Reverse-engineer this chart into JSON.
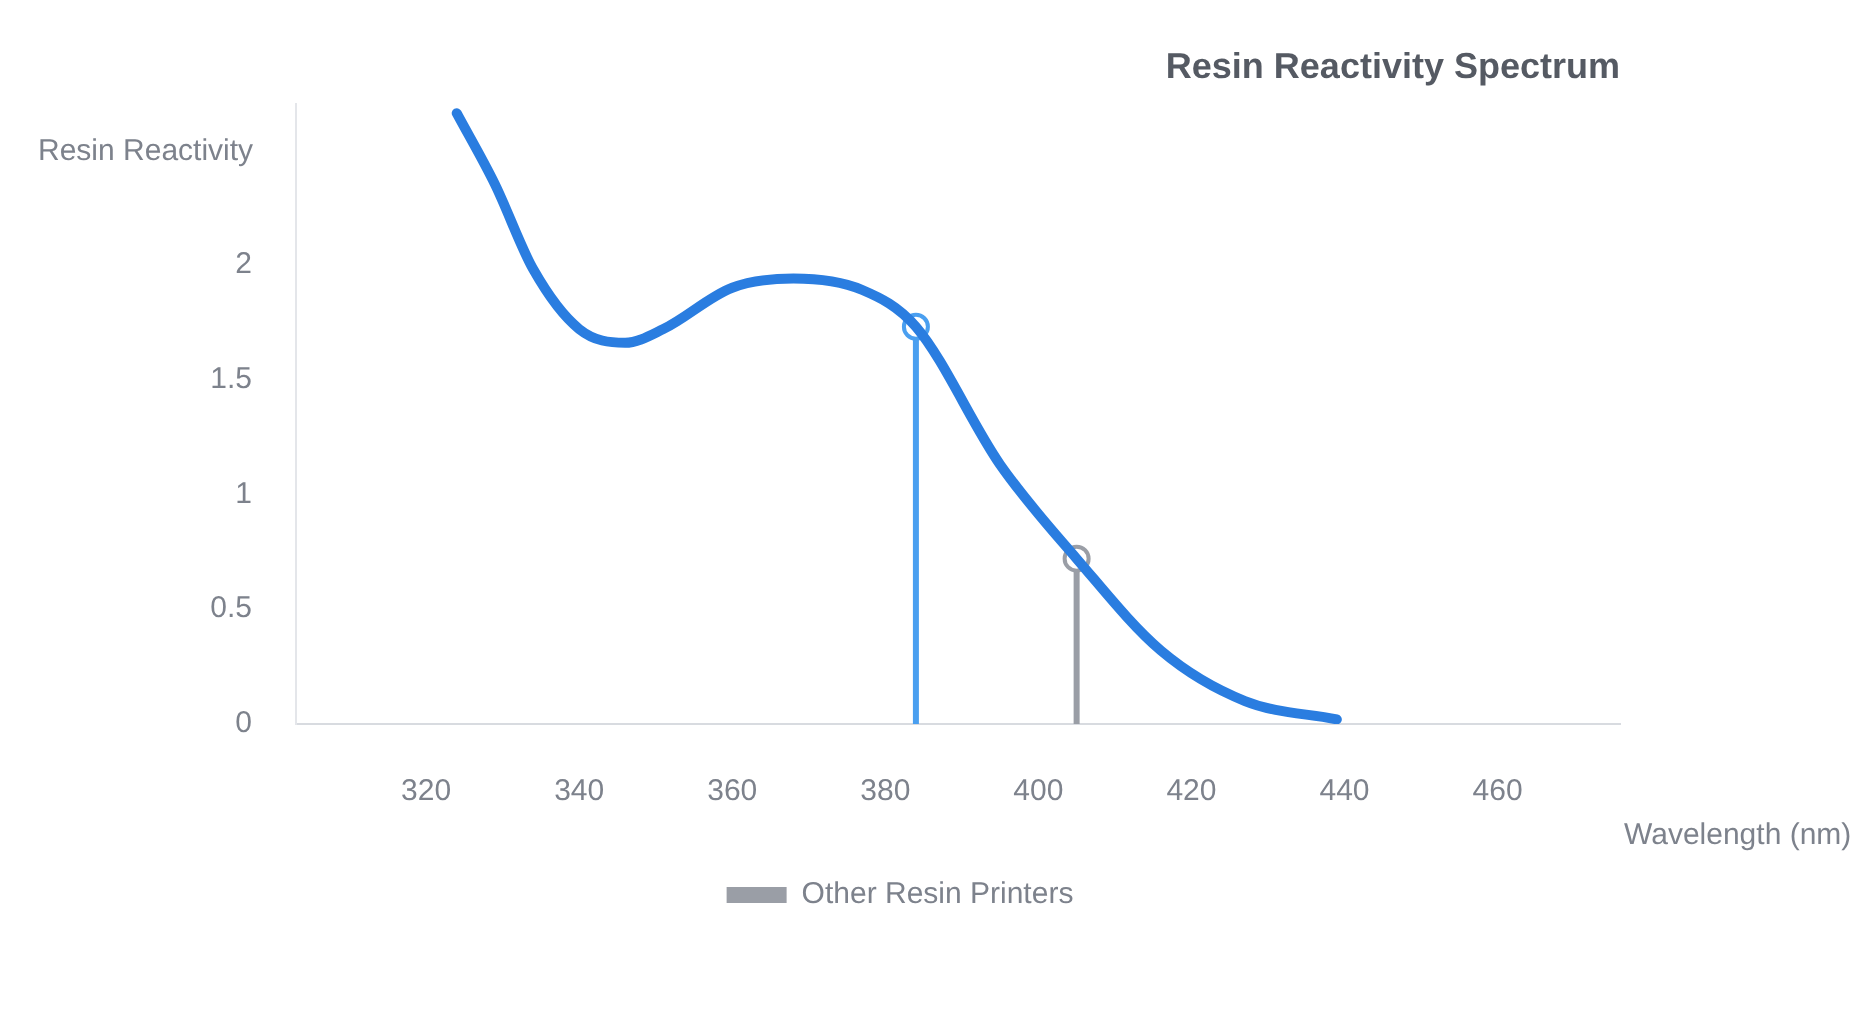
{
  "chart_data": {
    "type": "line",
    "title": "Resin Reactivity Spectrum",
    "xlabel": "Wavelength (nm)",
    "ylabel": "Resin Reactivity",
    "xlim": [
      303,
      476
    ],
    "xticks": [
      320,
      340,
      360,
      380,
      400,
      420,
      440,
      460
    ],
    "ylim": [
      0,
      2.7
    ],
    "yticks": [
      0,
      0.5,
      1,
      1.5,
      2
    ],
    "grid": false,
    "legend": "bottom",
    "series": [
      {
        "color": "#2a7de0",
        "marker": "none",
        "x": [
          324,
          329,
          334,
          340,
          346,
          351,
          360,
          368,
          377,
          384,
          395,
          405,
          416,
          427,
          439
        ],
        "values": [
          2.66,
          2.35,
          1.98,
          1.72,
          1.66,
          1.72,
          1.9,
          1.94,
          1.89,
          1.73,
          1.13,
          0.72,
          0.32,
          0.1,
          0.02
        ]
      },
      {
        "color": "#4a9ff0",
        "marker": "circle",
        "x": [
          384,
          384
        ],
        "values": [
          0,
          1.73
        ]
      },
      {
        "name": "Other Resin Printers",
        "color": "#9a9ea6",
        "marker": "circle",
        "x": [
          405,
          405
        ],
        "values": [
          0,
          0.72
        ]
      }
    ]
  }
}
